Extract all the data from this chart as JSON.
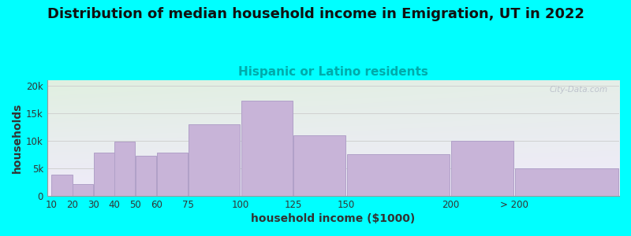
{
  "title": "Distribution of median household income in Emigration, UT in 2022",
  "subtitle": "Hispanic or Latino residents",
  "xlabel": "household income ($1000)",
  "ylabel": "households",
  "background_color": "#00FFFF",
  "bar_color": "#c8b4d8",
  "bar_edge_color": "#b0a0c8",
  "bin_edges": [
    10,
    20,
    30,
    40,
    50,
    60,
    75,
    100,
    125,
    150,
    200,
    230,
    280
  ],
  "bin_labels": [
    "10",
    "20",
    "30",
    "40",
    "50",
    "60",
    "75",
    "100",
    "125",
    "150",
    "200",
    "> 200"
  ],
  "values": [
    3800,
    2200,
    7800,
    9800,
    7200,
    7800,
    13000,
    17200,
    11000,
    7600,
    10000,
    5000
  ],
  "ylim": [
    0,
    21000
  ],
  "yticks": [
    0,
    5000,
    10000,
    15000,
    20000
  ],
  "ytick_labels": [
    "0",
    "5k",
    "10k",
    "15k",
    "20k"
  ],
  "title_fontsize": 13,
  "subtitle_fontsize": 11,
  "axis_label_fontsize": 10,
  "watermark_text": "City-Data.com",
  "watermark_color": "#b8bcc8",
  "title_color": "#111111",
  "subtitle_color": "#00aaaa"
}
